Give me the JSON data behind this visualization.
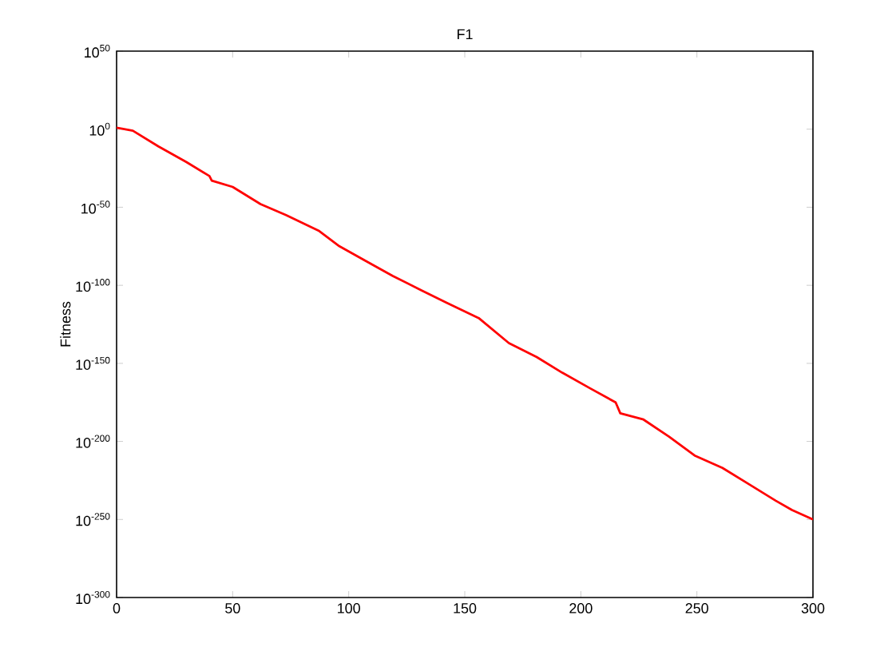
{
  "chart_data": {
    "type": "line",
    "title": "F1",
    "ylabel": "Fitness",
    "log": "y",
    "xlim": [
      0,
      300
    ],
    "xticks": [
      0,
      50,
      100,
      150,
      200,
      250,
      300
    ],
    "ylim": [
      1e-300,
      1e+50
    ],
    "yticks": [
      {
        "value": 1e-300,
        "label": "10$^{-300}$"
      },
      {
        "value": 1e-250,
        "label": "10$^{-250}$"
      },
      {
        "value": 1e-200,
        "label": "10$^{-200}$"
      },
      {
        "value": 1e-150,
        "label": "10$^{-150}$"
      },
      {
        "value": 1e-100,
        "label": "10$^{-100}$"
      },
      {
        "value": 1e-50,
        "label": "10$^{-50}$"
      },
      {
        "value": 1,
        "label": "10$^{0}$"
      },
      {
        "value": 1e+50,
        "label": "10$^{50}$"
      }
    ],
    "grid": false,
    "marker": "none",
    "line_style": "solid",
    "series": [
      {
        "color": "#ff0000",
        "x": [
          0,
          7,
          18,
          30,
          40,
          41,
          50,
          62,
          73,
          87,
          96,
          108,
          119,
          131,
          142,
          156,
          169,
          181,
          192,
          204,
          215,
          217,
          227,
          238,
          249,
          261,
          272,
          284,
          291,
          300
        ],
        "values": [
          10.0,
          0.1,
          1e-11,
          1e-21,
          1e-30,
          1e-33,
          1e-37,
          1e-48,
          1e-55,
          1e-65,
          1e-75,
          1e-85,
          1e-94,
          1e-103,
          1e-111,
          1e-121,
          1e-137,
          1e-146,
          1e-156,
          1e-166,
          1e-175,
          1e-182,
          1e-186,
          1e-197,
          1e-209,
          1e-217,
          1e-227,
          1e-238,
          1e-244,
          1e-250
        ]
      }
    ]
  }
}
